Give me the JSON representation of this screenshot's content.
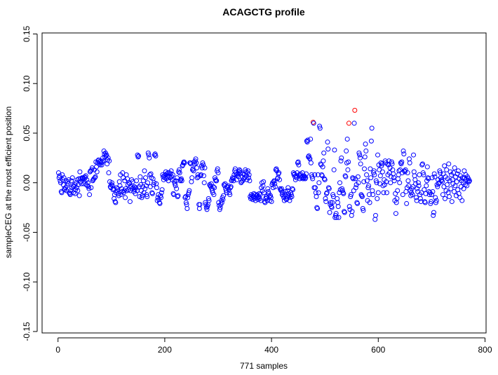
{
  "chart_data": {
    "type": "scatter",
    "title": "ACAGCTG profile",
    "xlabel": "771 samples",
    "ylabel": "sampleCEG at the most efficient position",
    "xlim": [
      0,
      800
    ],
    "ylim": [
      -0.15,
      0.15
    ],
    "x_ticks": [
      "0",
      "200",
      "400",
      "600",
      "800"
    ],
    "y_ticks": [
      "-0.15",
      "-0.10",
      "-0.05",
      "0.00",
      "0.05",
      "0.10",
      "0.15"
    ],
    "grid": false,
    "marker": "open-circle",
    "point_color": "#0000FF",
    "highlight_color": "#FF0000",
    "highlight_x": [
      478,
      545,
      556
    ],
    "x_start": 1,
    "y": [
      0.01,
      0.005,
      0.007,
      0.002,
      0.0,
      -0.009,
      -0.01,
      0.008,
      0.003,
      -0.002,
      0.005,
      -0.006,
      -0.007,
      -0.005,
      0.002,
      -0.008,
      -0.003,
      0.001,
      -0.001,
      0.003,
      -0.01,
      -0.011,
      -0.012,
      -0.008,
      0.002,
      -0.005,
      0.005,
      -0.003,
      -0.01,
      -0.004,
      -0.002,
      -0.011,
      -0.007,
      0.0,
      -0.005,
      0.003,
      -0.008,
      -0.002,
      0.004,
      -0.013,
      0.011,
      0.004,
      0.001,
      -0.001,
      0.005,
      0.004,
      0.005,
      -0.001,
      0.004,
      0.006,
      0.005,
      0.007,
      -0.002,
      0.003,
      -0.003,
      0.0,
      -0.004,
      -0.006,
      -0.012,
      0.011,
      0.012,
      -0.005,
      0.013,
      0.015,
      0.002,
      0.003,
      0.004,
      0.013,
      0.005,
      0.006,
      0.021,
      0.016,
      0.011,
      0.02,
      0.022,
      0.023,
      0.019,
      0.021,
      0.018,
      0.022,
      0.02,
      0.018,
      0.021,
      0.025,
      0.022,
      0.032,
      0.029,
      0.026,
      0.03,
      0.027,
      0.028,
      0.019,
      0.023,
      0.025,
      0.01,
      0.022,
      0.001,
      -0.004,
      -0.005,
      -0.002,
      0.0,
      -0.003,
      -0.007,
      -0.006,
      -0.016,
      -0.012,
      -0.019,
      -0.02,
      -0.01,
      -0.005,
      -0.008,
      -0.006,
      -0.011,
      -0.013,
      0.001,
      -0.003,
      0.008,
      -0.012,
      -0.006,
      -0.009,
      0.01,
      0.005,
      -0.01,
      -0.008,
      0.002,
      -0.015,
      -0.006,
      0.008,
      -0.008,
      0.004,
      -0.002,
      -0.007,
      0.0,
      -0.001,
      -0.019,
      -0.008,
      -0.004,
      0.003,
      -0.006,
      0.001,
      -0.005,
      -0.009,
      -0.004,
      -0.007,
      -0.011,
      -0.005,
      0.002,
      -0.008,
      0.028,
      0.026,
      0.027,
      -0.004,
      -0.014,
      0.006,
      -0.002,
      -0.008,
      -0.015,
      -0.013,
      -0.004,
      0.002,
      -0.01,
      0.012,
      -0.006,
      0.005,
      -0.003,
      -0.012,
      -0.014,
      0.0,
      0.03,
      0.028,
      0.025,
      0.008,
      -0.004,
      0.009,
      0.005,
      -0.01,
      -0.011,
      0.004,
      -0.002,
      0.0,
      0.028,
      0.029,
      0.027,
      -0.001,
      -0.005,
      -0.018,
      -0.015,
      -0.012,
      -0.017,
      -0.02,
      -0.021,
      -0.013,
      -0.015,
      -0.01,
      -0.007,
      0.008,
      0.006,
      0.003,
      0.007,
      0.005,
      0.008,
      0.011,
      0.004,
      0.009,
      0.006,
      0.01,
      0.002,
      0.007,
      0.01,
      0.005,
      0.009,
      0.012,
      0.006,
      0.003,
      0.008,
      -0.011,
      -0.012,
      0.001,
      -0.001,
      -0.003,
      0.002,
      -0.006,
      0.005,
      -0.014,
      -0.013,
      0.011,
      0.013,
      0.01,
      0.002,
      0.003,
      0.004,
      0.002,
      0.017,
      0.018,
      0.02,
      0.021,
      0.02,
      -0.015,
      -0.014,
      -0.02,
      -0.022,
      -0.026,
      -0.015,
      -0.012,
      -0.01,
      -0.008,
      0.02,
      0.02,
      0.019,
      0.001,
      0.005,
      0.013,
      0.014,
      0.012,
      0.021,
      0.019,
      0.022,
      0.024,
      0.02,
      0.015,
      0.005,
      0.008,
      0.006,
      -0.022,
      -0.026,
      -0.022,
      0.007,
      0.008,
      0.017,
      0.015,
      0.02,
      0.018,
      0.007,
      0.0,
      0.015,
      -0.02,
      -0.022,
      -0.025,
      -0.027,
      -0.024,
      -0.022,
      -0.016,
      -0.018,
      -0.002,
      -0.003,
      -0.004,
      -0.001,
      -0.006,
      -0.008,
      -0.01,
      -0.004,
      -0.012,
      -0.005,
      0.005,
      0.003,
      0.002,
      0.002,
      0.012,
      0.014,
      0.01,
      -0.02,
      -0.023,
      -0.027,
      -0.025,
      -0.022,
      -0.018,
      -0.02,
      -0.015,
      -0.017,
      -0.013,
      -0.002,
      -0.003,
      -0.001,
      -0.006,
      -0.008,
      -0.01,
      -0.004,
      -0.005,
      -0.003,
      -0.007,
      -0.01,
      -0.012,
      -0.005,
      -0.004,
      0.002,
      0.003,
      0.005,
      0.004,
      0.002,
      0.008,
      0.012,
      0.014,
      0.01,
      0.008,
      0.003,
      0.007,
      0.009,
      0.006,
      0.011,
      0.013,
      0.012,
      0.01,
      0.0,
      0.001,
      0.006,
      0.002,
      0.009,
      0.004,
      0.008,
      0.005,
      0.013,
      0.011,
      0.007,
      0.003,
      0.01,
      0.012,
      0.005,
      0.008,
      0.002,
      -0.014,
      -0.016,
      -0.012,
      -0.015,
      -0.013,
      -0.017,
      -0.014,
      -0.011,
      -0.016,
      -0.012,
      -0.018,
      -0.015,
      -0.013,
      -0.012,
      -0.015,
      -0.017,
      -0.014,
      -0.011,
      -0.016,
      -0.012,
      -0.018,
      -0.005,
      0.0,
      -0.008,
      -0.003,
      0.001,
      -0.01,
      -0.019,
      -0.02,
      -0.016,
      -0.014,
      -0.015,
      -0.018,
      -0.006,
      -0.009,
      -0.011,
      -0.014,
      -0.018,
      -0.013,
      -0.015,
      -0.019,
      -0.002,
      0.0,
      -0.005,
      0.001,
      0.002,
      -0.001,
      -0.004,
      0.013,
      0.014,
      0.012,
      0.004,
      0.005,
      0.009,
      0.01,
      0.003,
      -0.006,
      -0.007,
      -0.008,
      -0.006,
      -0.012,
      -0.01,
      -0.013,
      -0.015,
      -0.018,
      -0.012,
      -0.009,
      -0.016,
      -0.017,
      -0.014,
      -0.008,
      -0.005,
      -0.011,
      -0.013,
      -0.018,
      -0.015,
      -0.01,
      -0.012,
      -0.014,
      -0.006,
      -0.007,
      0.01,
      0.008,
      0.009,
      0.006,
      0.003,
      0.007,
      0.005,
      0.01,
      0.02,
      0.021,
      0.018,
      0.008,
      0.004,
      0.009,
      0.007,
      0.005,
      0.006,
      0.01,
      0.004,
      0.005,
      0.007,
      0.006,
      0.004,
      0.005,
      0.009,
      0.042,
      0.041,
      0.043,
      0.026,
      0.027,
      0.025,
      0.024,
      0.044,
      0.02,
      0.008,
      0.006,
      0.004,
      0.061,
      0.06,
      -0.005,
      0.008,
      -0.005,
      -0.01,
      -0.014,
      -0.025,
      -0.026,
      0.008,
      -0.01,
      0.0,
      0.057,
      0.055,
      0.019,
      0.018,
      0.008,
      0.007,
      0.016,
      0.022,
      0.03,
      0.004,
      0.003,
      -0.016,
      -0.019,
      -0.011,
      -0.01,
      0.041,
      0.034,
      -0.005,
      -0.006,
      -0.03,
      -0.022,
      -0.02,
      -0.024,
      -0.025,
      -0.02,
      -0.012,
      -0.014,
      0.013,
      0.033,
      -0.035,
      -0.033,
      -0.031,
      -0.035,
      -0.016,
      -0.02,
      -0.024,
      -0.035,
      -0.01,
      0.0,
      -0.007,
      0.022,
      0.025,
      -0.006,
      -0.008,
      -0.01,
      -0.011,
      -0.029,
      -0.03,
      0.007,
      0.006,
      0.032,
      0.02,
      0.044,
      0.013,
      0.021,
      0.06,
      -0.024,
      -0.027,
      -0.014,
      -0.012,
      -0.033,
      -0.029,
      0.005,
      0.004,
      -0.008,
      0.06,
      0.073,
      0.004,
      -0.005,
      -0.002,
      -0.02,
      -0.021,
      0.006,
      0.0,
      0.03,
      0.028,
      0.025,
      0.019,
      -0.012,
      -0.013,
      -0.014,
      -0.026,
      -0.028,
      0.001,
      0.014,
      0.026,
      0.039,
      0.032,
      0.008,
      0.002,
      -0.018,
      -0.005,
      -0.003,
      -0.012,
      -0.02,
      0.014,
      0.005,
      0.042,
      0.055,
      -0.008,
      -0.012,
      0.01,
      0.012,
      0.008,
      -0.037,
      -0.033,
      0.002,
      0.0,
      -0.016,
      0.028,
      -0.01,
      0.018,
      0.013,
      -0.001,
      0.007,
      0.02,
      0.017,
      0.019,
      0.011,
      -0.003,
      -0.01,
      0.003,
      -0.002,
      0.022,
      0.02,
      0.001,
      -0.01,
      0.019,
      0.008,
      0.018,
      0.022,
      0.01,
      0.015,
      0.0,
      0.006,
      0.021,
      0.019,
      0.013,
      0.009,
      0.005,
      0.002,
      -0.018,
      -0.011,
      -0.031,
      -0.02,
      -0.016,
      -0.008,
      0.004,
      0.008,
      0.012,
      0.0,
      0.013,
      0.02,
      0.019,
      0.021,
      0.01,
      -0.012,
      0.032,
      0.029,
      0.012,
      0.011,
      0.013,
      -0.009,
      -0.021,
      -0.005,
      0.01,
      0.002,
      -0.003,
      0.024,
      0.02,
      -0.008,
      -0.013,
      -0.01,
      -0.006,
      -0.012,
      -0.004,
      0.028,
      0.011,
      0.007,
      0.003,
      -0.001,
      -0.015,
      -0.018,
      -0.006,
      -0.009,
      0.0,
      -0.003,
      0.008,
      -0.012,
      -0.016,
      -0.019,
      -0.01,
      0.018,
      0.019,
      0.01,
      0.008,
      -0.007,
      -0.019,
      -0.02,
      -0.011,
      -0.003,
      0.002,
      0.016,
      0.005,
      0.004,
      -0.009,
      -0.012,
      -0.01,
      -0.021,
      -0.019,
      -0.012,
      0.005,
      -0.009,
      -0.033,
      -0.03,
      0.009,
      0.006,
      -0.015,
      -0.02,
      -0.018,
      -0.002,
      -0.004,
      0.003,
      -0.001,
      0.0,
      0.012,
      0.01,
      0.005,
      0.002,
      0.003,
      0.001,
      -0.012,
      0.009,
      -0.004,
      0.017,
      -0.016,
      0.006,
      -0.008,
      0.013,
      -0.002,
      0.004,
      -0.01,
      0.019,
      -0.014,
      0.002,
      0.011,
      -0.006,
      0.008,
      -0.019,
      0.003,
      -0.001,
      0.01,
      -0.009,
      0.015,
      -0.003,
      0.006,
      -0.013,
      0.001,
      0.009,
      -0.007,
      0.012,
      -0.011,
      0.004,
      -0.015,
      0.007,
      -0.004,
      0.002,
      -0.018,
      0.005,
      0.0,
      -0.006,
      0.012,
      0.005,
      -0.002,
      0.008,
      0.003,
      -0.003,
      0.006,
      0.002,
      0.004,
      0.001,
      0.002
    ]
  }
}
